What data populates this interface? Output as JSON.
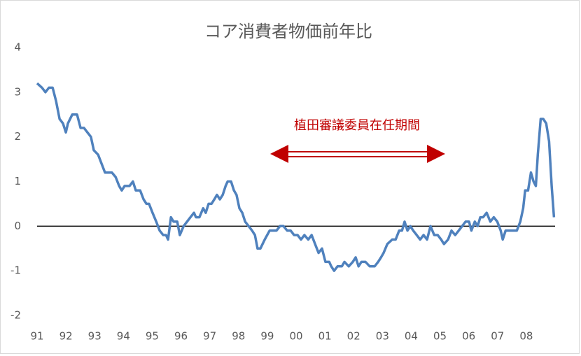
{
  "chart_data": {
    "type": "line",
    "title": "コア消費者物価前年比",
    "annotation": "植田審議委員在任期間",
    "color": "#4f81bd",
    "xlim": [
      1991,
      2009
    ],
    "xticks": [
      {
        "value": 1991,
        "label": "91"
      },
      {
        "value": 1992,
        "label": "92"
      },
      {
        "value": 1993,
        "label": "93"
      },
      {
        "value": 1994,
        "label": "94"
      },
      {
        "value": 1995,
        "label": "95"
      },
      {
        "value": 1996,
        "label": "96"
      },
      {
        "value": 1997,
        "label": "97"
      },
      {
        "value": 1998,
        "label": "98"
      },
      {
        "value": 1999,
        "label": "99"
      },
      {
        "value": 2000,
        "label": "00"
      },
      {
        "value": 2001,
        "label": "01"
      },
      {
        "value": 2002,
        "label": "02"
      },
      {
        "value": 2003,
        "label": "03"
      },
      {
        "value": 2004,
        "label": "04"
      },
      {
        "value": 2005,
        "label": "05"
      },
      {
        "value": 2006,
        "label": "06"
      },
      {
        "value": 2007,
        "label": "07"
      },
      {
        "value": 2008,
        "label": "08"
      }
    ],
    "ylim": [
      -2,
      4
    ],
    "yticks": [
      4,
      3,
      2,
      1,
      0,
      -1,
      -2
    ],
    "grid": false,
    "x": [
      1991.0,
      1991.17,
      1991.29,
      1991.41,
      1991.54,
      1991.66,
      1991.78,
      1991.9,
      1992.0,
      1992.07,
      1992.22,
      1992.39,
      1992.51,
      1992.63,
      1992.75,
      1992.87,
      1992.97,
      1993.12,
      1993.24,
      1993.36,
      1993.6,
      1993.73,
      1993.85,
      1993.94,
      1994.04,
      1994.21,
      1994.33,
      1994.43,
      1994.58,
      1994.7,
      1994.8,
      1994.89,
      1995.01,
      1995.14,
      1995.26,
      1995.38,
      1995.48,
      1995.55,
      1995.65,
      1995.74,
      1995.87,
      1995.96,
      1996.09,
      1996.21,
      1996.33,
      1996.45,
      1996.52,
      1996.64,
      1996.77,
      1996.86,
      1996.96,
      1997.06,
      1997.16,
      1997.25,
      1997.35,
      1997.45,
      1997.55,
      1997.62,
      1997.74,
      1997.84,
      1997.93,
      1998.03,
      1998.13,
      1998.23,
      1998.35,
      1998.47,
      1998.57,
      1998.66,
      1998.76,
      1998.91,
      1999.08,
      1999.32,
      1999.44,
      1999.56,
      1999.69,
      1999.81,
      1999.93,
      2000.05,
      2000.17,
      2000.29,
      2000.42,
      2000.54,
      2000.66,
      2000.78,
      2000.9,
      2001.02,
      2001.15,
      2001.22,
      2001.32,
      2001.44,
      2001.59,
      2001.68,
      2001.83,
      2001.97,
      2002.07,
      2002.17,
      2002.27,
      2002.41,
      2002.56,
      2002.73,
      2002.85,
      2002.95,
      2003.04,
      2003.17,
      2003.34,
      2003.46,
      2003.58,
      2003.68,
      2003.77,
      2003.87,
      2003.97,
      2004.07,
      2004.19,
      2004.31,
      2004.43,
      2004.55,
      2004.67,
      2004.8,
      2004.92,
      2005.04,
      2005.14,
      2005.28,
      2005.4,
      2005.53,
      2005.65,
      2005.77,
      2005.89,
      2006.01,
      2006.09,
      2006.21,
      2006.31,
      2006.4,
      2006.5,
      2006.62,
      2006.75,
      2006.87,
      2006.99,
      2007.11,
      2007.18,
      2007.28,
      2007.47,
      2007.67,
      2007.79,
      2007.89,
      2007.96,
      2008.06,
      2008.16,
      2008.25,
      2008.33,
      2008.4,
      2008.5,
      2008.59,
      2008.69,
      2008.79,
      2008.88,
      2008.96
    ],
    "values": [
      3.2,
      3.1,
      3.0,
      3.1,
      3.1,
      2.8,
      2.4,
      2.3,
      2.1,
      2.3,
      2.5,
      2.5,
      2.2,
      2.2,
      2.1,
      2.0,
      1.7,
      1.6,
      1.4,
      1.2,
      1.2,
      1.1,
      0.9,
      0.8,
      0.9,
      0.9,
      1.0,
      0.8,
      0.8,
      0.6,
      0.5,
      0.5,
      0.3,
      0.1,
      -0.1,
      -0.2,
      -0.2,
      -0.3,
      0.2,
      0.1,
      0.1,
      -0.2,
      0.0,
      0.1,
      0.2,
      0.3,
      0.2,
      0.2,
      0.4,
      0.3,
      0.5,
      0.5,
      0.6,
      0.7,
      0.6,
      0.7,
      0.9,
      1.0,
      1.0,
      0.8,
      0.7,
      0.4,
      0.3,
      0.1,
      0.0,
      -0.1,
      -0.2,
      -0.5,
      -0.5,
      -0.3,
      -0.1,
      -0.1,
      0.0,
      0.0,
      -0.1,
      -0.1,
      -0.2,
      -0.2,
      -0.3,
      -0.2,
      -0.3,
      -0.2,
      -0.4,
      -0.6,
      -0.5,
      -0.8,
      -0.8,
      -0.9,
      -1.0,
      -0.9,
      -0.9,
      -0.8,
      -0.9,
      -0.8,
      -0.7,
      -0.9,
      -0.8,
      -0.8,
      -0.9,
      -0.9,
      -0.8,
      -0.7,
      -0.6,
      -0.4,
      -0.3,
      -0.3,
      -0.1,
      -0.1,
      0.1,
      -0.1,
      0.0,
      -0.1,
      -0.2,
      -0.3,
      -0.2,
      -0.3,
      0.0,
      -0.2,
      -0.2,
      -0.3,
      -0.4,
      -0.3,
      -0.1,
      -0.2,
      -0.1,
      0.0,
      0.1,
      0.1,
      -0.1,
      0.1,
      0.0,
      0.2,
      0.2,
      0.3,
      0.1,
      0.2,
      0.1,
      -0.1,
      -0.3,
      -0.1,
      -0.1,
      -0.1,
      0.1,
      0.4,
      0.8,
      0.8,
      1.2,
      1.0,
      0.9,
      1.6,
      2.4,
      2.4,
      2.3,
      1.9,
      0.9,
      0.2
    ]
  }
}
